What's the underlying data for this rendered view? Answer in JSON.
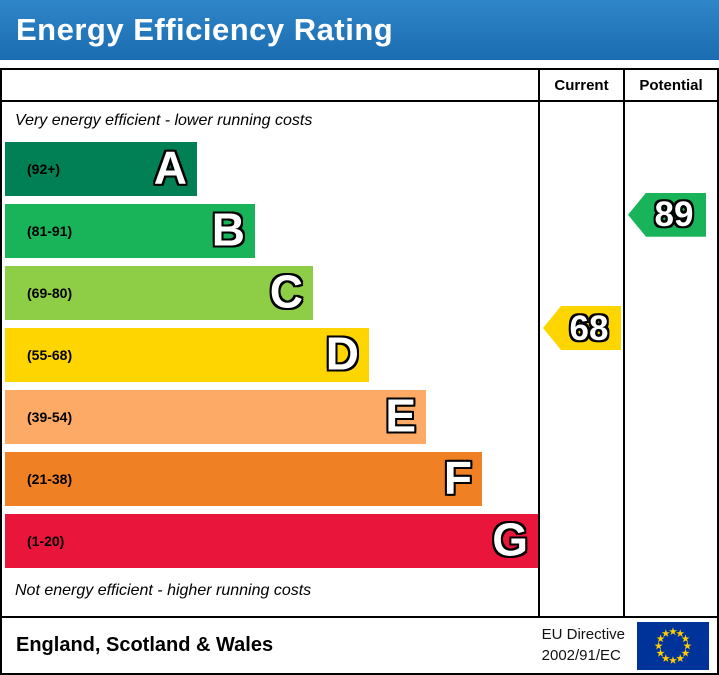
{
  "banner": {
    "title": "Energy Efficiency Rating",
    "bg_color": "#1b6cb1",
    "text_color": "#ffffff"
  },
  "table": {
    "current_header": "Current",
    "potential_header": "Potential"
  },
  "chart_data": {
    "type": "bar",
    "title": "Energy Efficiency Rating",
    "top_caption": "Very energy efficient - lower running costs",
    "bottom_caption": "Not energy efficient - higher running costs",
    "bands": [
      {
        "letter": "A",
        "range": "(92+)",
        "lo": 92,
        "hi": 100,
        "color": "#008054"
      },
      {
        "letter": "B",
        "range": "(81-91)",
        "lo": 81,
        "hi": 91,
        "color": "#19b459"
      },
      {
        "letter": "C",
        "range": "(69-80)",
        "lo": 69,
        "hi": 80,
        "color": "#8dce46"
      },
      {
        "letter": "D",
        "range": "(55-68)",
        "lo": 55,
        "hi": 68,
        "color": "#ffd500"
      },
      {
        "letter": "E",
        "range": "(39-54)",
        "lo": 39,
        "hi": 54,
        "color": "#fcaa65"
      },
      {
        "letter": "F",
        "range": "(21-38)",
        "lo": 21,
        "hi": 38,
        "color": "#ef8023"
      },
      {
        "letter": "G",
        "range": "(1-20)",
        "lo": 1,
        "hi": 20,
        "color": "#e9153b"
      }
    ],
    "columns": [
      "Current",
      "Potential"
    ],
    "current": {
      "value": 68,
      "band": "D",
      "color": "#ffd500"
    },
    "potential": {
      "value": 89,
      "band": "B",
      "color": "#19b459"
    }
  },
  "footer": {
    "region": "England, Scotland & Wales",
    "directive_line1": "EU Directive",
    "directive_line2": "2002/91/EC",
    "eu_flag": {
      "bg_color": "#003399",
      "star_color": "#ffcc00",
      "star_count": 12
    }
  }
}
